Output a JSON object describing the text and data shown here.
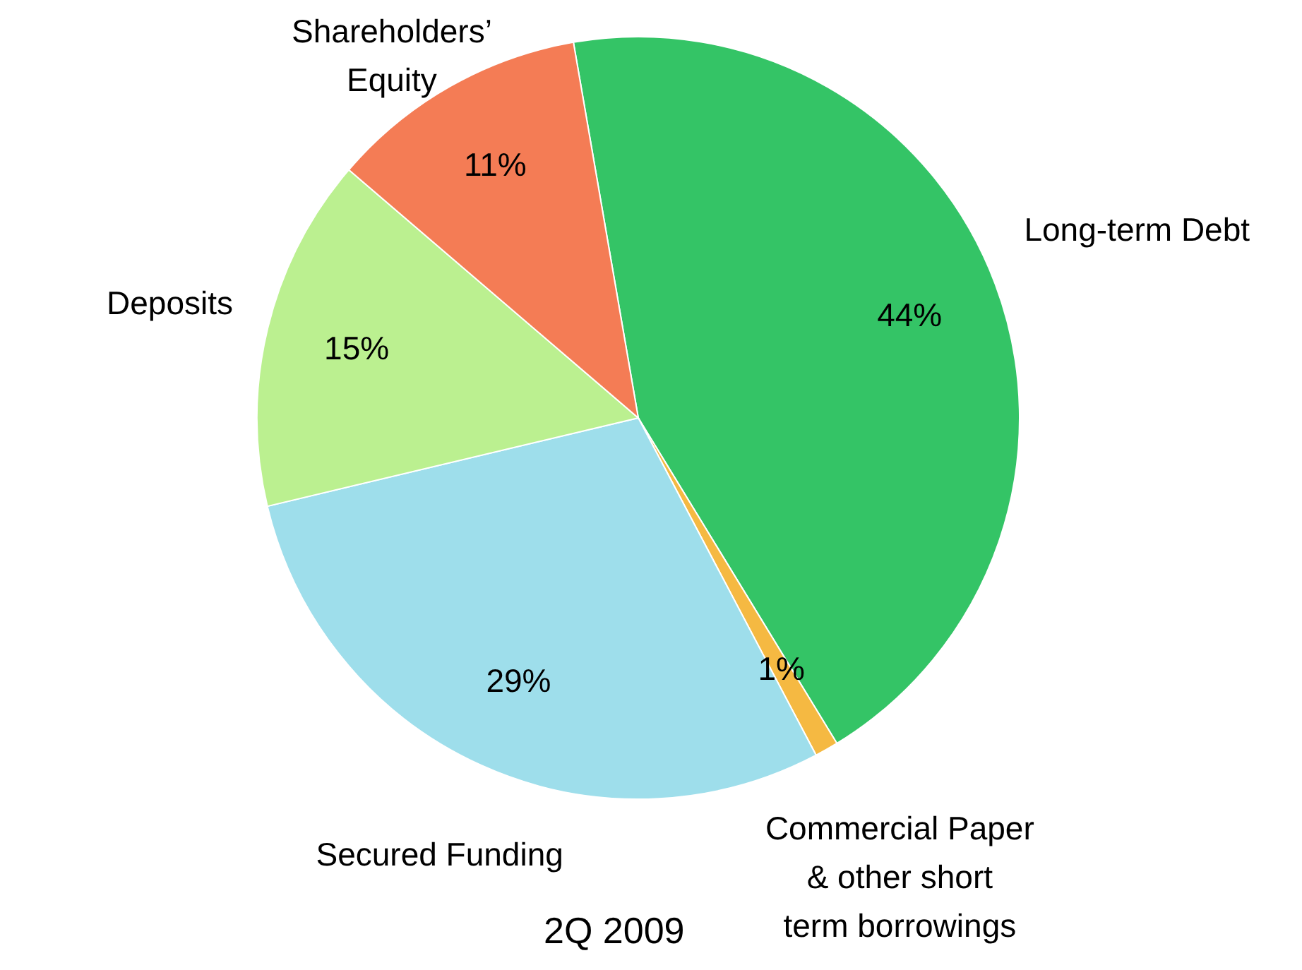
{
  "chart_data": {
    "type": "pie",
    "title": "2Q 2009",
    "categories": [
      "Long-term Debt",
      "Commercial Paper & other short term borrowings",
      "Secured Funding",
      "Deposits",
      "Shareholders’ Equity"
    ],
    "values": [
      44,
      1,
      29,
      15,
      11
    ],
    "value_labels": [
      "44%",
      "1%",
      "29%",
      "15%",
      "11%"
    ],
    "colors": [
      "#34c466",
      "#f5b942",
      "#9edeeb",
      "#bbf090",
      "#f47c55"
    ]
  }
}
